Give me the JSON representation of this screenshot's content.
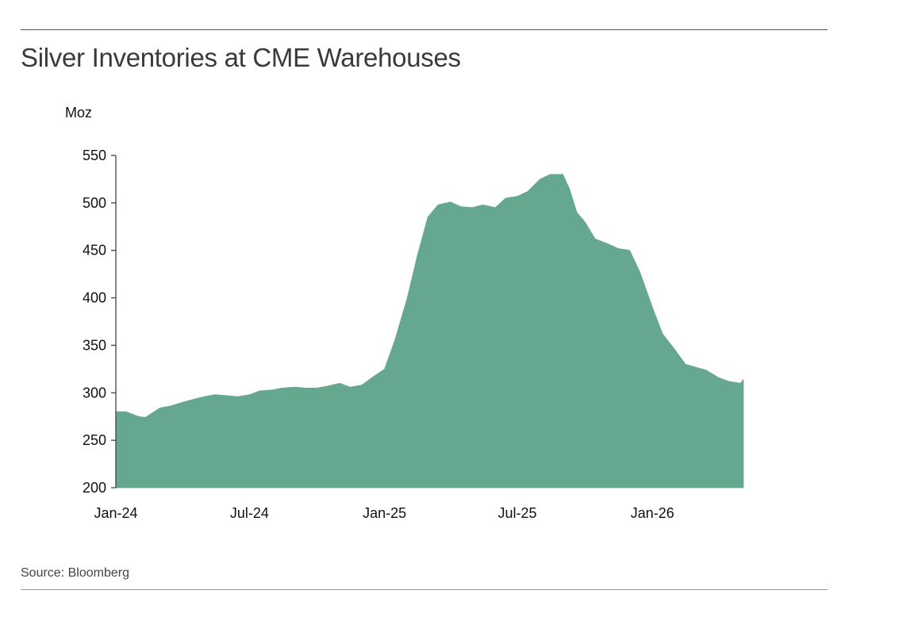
{
  "title": "Silver Inventories at CME Warehouses",
  "source": "Source: Bloomberg",
  "colors": {
    "area_fill": "#66a88f",
    "axis": "#444444",
    "text": "#111111"
  },
  "chart_data": {
    "type": "area",
    "title": "Silver Inventories at CME Warehouses",
    "unit_label": "Moz",
    "xlabel": "",
    "ylabel": "",
    "ylim": [
      200,
      550
    ],
    "yticks": [
      200,
      250,
      300,
      350,
      400,
      450,
      500,
      550
    ],
    "xticks": [
      {
        "date": "2024-01-01",
        "label": "Jan-24"
      },
      {
        "date": "2024-07-01",
        "label": "Jul-24"
      },
      {
        "date": "2025-01-01",
        "label": "Jan-25"
      },
      {
        "date": "2025-07-01",
        "label": "Jul-25"
      },
      {
        "date": "2026-01-01",
        "label": "Jan-26"
      }
    ],
    "xlim": [
      "2024-01-01",
      "2026-05-05"
    ],
    "grid": false,
    "legend": "none",
    "series": [
      {
        "x": [
          "2024-01-01",
          "2024-01-15",
          "2024-02-01",
          "2024-02-10",
          "2024-02-20",
          "2024-03-01",
          "2024-03-15",
          "2024-04-01",
          "2024-04-15",
          "2024-05-01",
          "2024-05-15",
          "2024-06-01",
          "2024-06-15",
          "2024-07-01",
          "2024-07-15",
          "2024-08-01",
          "2024-08-15",
          "2024-09-01",
          "2024-09-15",
          "2024-10-01",
          "2024-10-15",
          "2024-11-01",
          "2024-11-15",
          "2024-12-01",
          "2024-12-15",
          "2025-01-01",
          "2025-01-15",
          "2025-02-01",
          "2025-02-15",
          "2025-03-01",
          "2025-03-15",
          "2025-04-01",
          "2025-04-15",
          "2025-05-01",
          "2025-05-15",
          "2025-06-01",
          "2025-06-15",
          "2025-07-01",
          "2025-07-15",
          "2025-08-01",
          "2025-08-15",
          "2025-09-01",
          "2025-09-10",
          "2025-09-20",
          "2025-10-01",
          "2025-10-15",
          "2025-11-01",
          "2025-11-15",
          "2025-12-01",
          "2025-12-15",
          "2026-01-01",
          "2026-01-15",
          "2026-02-01",
          "2026-02-15",
          "2026-03-01",
          "2026-03-15",
          "2026-04-01",
          "2026-04-15",
          "2026-05-01",
          "2026-05-05"
        ],
        "values": [
          280,
          280,
          275,
          274,
          279,
          284,
          286,
          290,
          293,
          296,
          298,
          297,
          296,
          298,
          302,
          303,
          305,
          306,
          305,
          305,
          307,
          310,
          306,
          308,
          316,
          325,
          355,
          400,
          445,
          485,
          498,
          501,
          496,
          495,
          498,
          495,
          505,
          507,
          512,
          525,
          530,
          530,
          515,
          490,
          480,
          462,
          457,
          452,
          450,
          427,
          390,
          362,
          345,
          330,
          327,
          324,
          316,
          312,
          310,
          314
        ]
      }
    ]
  }
}
